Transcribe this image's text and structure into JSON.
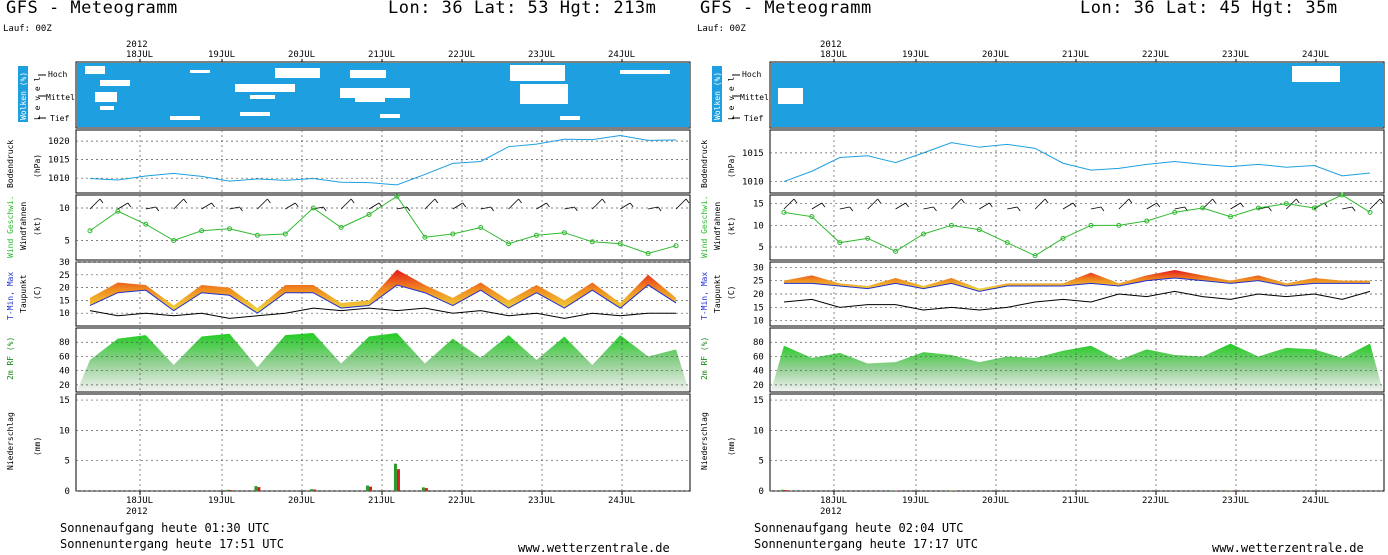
{
  "panels": [
    {
      "title": "GFS - Meteogramm",
      "coords": "Lon: 36 Lat: 53 Hgt: 213m",
      "lauf": "Lauf: 00Z",
      "year": "2012",
      "dates": [
        "18JUL",
        "19JUL",
        "20JUL",
        "21JUL",
        "22JUL",
        "23JUL",
        "24JUL"
      ],
      "sunrise": "Sonnenaufgang heute 01:30 UTC",
      "sunset": "Sonnenuntergang heute 17:51 UTC",
      "site": "www.wetterzentrale.de",
      "chart_data": [
        {
          "type": "heatmap",
          "title": "Wolken (%)",
          "ylabel": "L e v e l",
          "levels": [
            "Hoch",
            "Mittel",
            "Tief"
          ],
          "description_values": "cloud cover bands; mostly clear (blue) with white cloud patches"
        },
        {
          "type": "line",
          "ylabel": "Bodendruck (hPa)",
          "yticks": [
            1010,
            1015,
            1020
          ],
          "ylim": [
            1006,
            1023
          ],
          "x": [
            0,
            2,
            4,
            6,
            8,
            10,
            12,
            14,
            16,
            18,
            20,
            22,
            24,
            26,
            28,
            30,
            32,
            34,
            36,
            38,
            40,
            42
          ],
          "series": [
            {
              "name": "Bodendruck",
              "values": [
                1009.9,
                1009.5,
                1010.6,
                1011.3,
                1010.5,
                1009.2,
                1009.8,
                1009.4,
                1009.9,
                1008.9,
                1008.8,
                1008.2,
                1011.0,
                1014.0,
                1014.5,
                1018.5,
                1019.2,
                1020.5,
                1020.4,
                1021.5,
                1020.2,
                1020.3
              ]
            }
          ]
        },
        {
          "type": "line",
          "ylabel": "Wind Geschwi. Windfahnen (kt)",
          "yticks": [
            5,
            10
          ],
          "ylim": [
            2,
            12
          ],
          "series": [
            {
              "name": "Wind Geschwi.",
              "values": [
                6.5,
                9.5,
                7.5,
                5.0,
                6.5,
                6.8,
                5.8,
                6.0,
                10.0,
                7.0,
                9.0,
                11.8,
                5.5,
                6.0,
                7.0,
                4.5,
                5.8,
                6.2,
                4.8,
                4.5,
                3.0,
                4.2
              ]
            }
          ]
        },
        {
          "type": "area",
          "ylabel": "T-Min, Max Taupunkt (C)",
          "yticks": [
            10,
            15,
            20,
            25,
            30
          ],
          "ylim": [
            5,
            30
          ],
          "series": [
            {
              "name": "T-Max",
              "values": [
                16,
                22,
                21,
                13,
                21,
                20,
                12,
                21,
                21,
                14,
                15,
                27,
                21,
                16,
                22,
                15,
                21,
                15,
                22,
                14,
                25,
                16
              ]
            },
            {
              "name": "T-Min",
              "values": [
                13,
                18,
                19,
                11,
                18,
                17,
                10,
                18,
                18,
                12,
                13,
                21,
                18,
                13,
                19,
                12,
                18,
                12,
                19,
                12,
                21,
                14
              ]
            },
            {
              "name": "Taupunkt",
              "values": [
                11,
                9,
                10,
                9,
                10,
                8,
                9,
                10,
                12,
                11,
                12,
                11,
                12,
                10,
                11,
                9,
                10,
                8,
                10,
                9,
                10,
                10
              ]
            }
          ]
        },
        {
          "type": "area",
          "ylabel": "2m RF (%)",
          "yticks": [
            20,
            40,
            60,
            80
          ],
          "ylim": [
            10,
            100
          ],
          "series": [
            {
              "name": "2m RF",
              "values": [
                55,
                85,
                90,
                48,
                88,
                92,
                45,
                90,
                93,
                50,
                88,
                93,
                50,
                85,
                58,
                90,
                55,
                88,
                48,
                90,
                60,
                70
              ]
            }
          ]
        },
        {
          "type": "bar",
          "ylabel": "Niederschlag (mm)",
          "yticks": [
            0,
            5,
            10,
            15
          ],
          "ylim": [
            0,
            16
          ],
          "series": [
            {
              "name": "Niederschlag",
              "values": [
                0,
                0,
                0,
                0,
                0,
                0.2,
                0.8,
                0,
                0.3,
                0,
                0.9,
                4.5,
                0.6,
                0,
                0,
                0,
                0,
                0,
                0,
                0,
                0,
                0
              ]
            }
          ]
        }
      ]
    },
    {
      "title": "GFS - Meteogramm",
      "coords": "Lon: 36 Lat: 45 Hgt: 35m",
      "lauf": "Lauf: 00Z",
      "year": "2012",
      "dates": [
        "18JUL",
        "19JUL",
        "20JUL",
        "21JUL",
        "22JUL",
        "23JUL",
        "24JUL"
      ],
      "sunrise": "Sonnenaufgang heute 02:04 UTC",
      "sunset": "Sonnenuntergang heute 17:17 UTC",
      "site": "www.wetterzentrale.de",
      "chart_data": [
        {
          "type": "heatmap",
          "title": "Wolken (%)",
          "ylabel": "L e v e l",
          "levels": [
            "Hoch",
            "Mittel",
            "Tief"
          ],
          "description_values": "mostly clear (blue) with small white cloud patches"
        },
        {
          "type": "line",
          "ylabel": "Bodendruck (hPa)",
          "yticks": [
            1010,
            1015
          ],
          "ylim": [
            1008,
            1019
          ],
          "x": [
            0,
            2,
            4,
            6,
            8,
            10,
            12,
            14,
            16,
            18,
            20,
            22,
            24,
            26,
            28,
            30,
            32,
            34,
            36,
            38,
            40,
            42
          ],
          "series": [
            {
              "name": "Bodendruck",
              "values": [
                1010.0,
                1011.8,
                1014.2,
                1014.5,
                1013.3,
                1015.0,
                1016.8,
                1016.0,
                1016.5,
                1015.8,
                1013.2,
                1012.0,
                1012.3,
                1013.0,
                1013.5,
                1013.0,
                1012.6,
                1013.0,
                1012.5,
                1012.8,
                1011.0,
                1011.5
              ]
            }
          ]
        },
        {
          "type": "line",
          "ylabel": "Wind Geschwi. Windfahnen (kt)",
          "yticks": [
            5,
            10,
            15
          ],
          "ylim": [
            2,
            17
          ],
          "series": [
            {
              "name": "Wind Geschwi.",
              "values": [
                13,
                12,
                6,
                7,
                4,
                8,
                10,
                9,
                6,
                3,
                7,
                10,
                10,
                11,
                13,
                14,
                12,
                14,
                15,
                14,
                17,
                13
              ]
            }
          ]
        },
        {
          "type": "area",
          "ylabel": "T-Min, Max Taupunkt (C)",
          "yticks": [
            10,
            15,
            20,
            25,
            30
          ],
          "ylim": [
            8,
            32
          ],
          "series": [
            {
              "name": "T-Max",
              "values": [
                25,
                27,
                24,
                23,
                26,
                23,
                26,
                22,
                24,
                24,
                24,
                28,
                24,
                27,
                29,
                27,
                25,
                27,
                24,
                26,
                25,
                25
              ]
            },
            {
              "name": "T-Min",
              "values": [
                24,
                24,
                23,
                22,
                24,
                22,
                24,
                21,
                23,
                23,
                23,
                24,
                23,
                25,
                26,
                25,
                24,
                25,
                23,
                24,
                24,
                24
              ]
            },
            {
              "name": "Taupunkt",
              "values": [
                17,
                18,
                15,
                16,
                16,
                14,
                15,
                14,
                15,
                17,
                18,
                17,
                20,
                19,
                21,
                19,
                18,
                20,
                19,
                20,
                18,
                21
              ]
            }
          ]
        },
        {
          "type": "area",
          "ylabel": "2m RF (%)",
          "yticks": [
            20,
            40,
            60,
            80
          ],
          "ylim": [
            10,
            100
          ],
          "series": [
            {
              "name": "2m RF",
              "values": [
                75,
                58,
                65,
                50,
                52,
                66,
                62,
                52,
                60,
                58,
                68,
                75,
                55,
                70,
                62,
                60,
                78,
                60,
                72,
                70,
                58,
                78
              ]
            }
          ]
        },
        {
          "type": "bar",
          "ylabel": "Niederschlag (mm)",
          "yticks": [
            0,
            5,
            10,
            15
          ],
          "ylim": [
            0,
            16
          ],
          "series": [
            {
              "name": "Niederschlag",
              "values": [
                0.2,
                0,
                0,
                0,
                0.1,
                0,
                0.1,
                0,
                0,
                0,
                0,
                0,
                0,
                0,
                0,
                0,
                0.1,
                0,
                0,
                0,
                0,
                0
              ]
            }
          ]
        }
      ]
    }
  ],
  "labels": {
    "cloud_row": "Wolken (%)",
    "level": "L e v e l",
    "hoch": "Hoch",
    "mittel": "Mittel",
    "tief": "Tief",
    "pressure_row": "Bodendruck",
    "pressure_unit": "(hPa)",
    "wind_row_a": "Wind Geschwi.",
    "wind_row_b": "Windfahnen",
    "wind_unit": "(kt)",
    "temp_row_a": "T-Min, Max",
    "temp_row_b": "Taupunkt",
    "temp_unit": "(C)",
    "rh_row": "2m RF (%)",
    "precip_row": "Niederschlag",
    "precip_unit": "(mm)"
  },
  "colors": {
    "cloud": "#1ea0e0",
    "pressure": "#1ea0e0",
    "wind": "#2fb92f",
    "tmax": "#e81010",
    "tmin": "#2030d0",
    "rh": "#22c022",
    "precip_green": "#2a9a2a",
    "precip_red": "#d02020"
  }
}
